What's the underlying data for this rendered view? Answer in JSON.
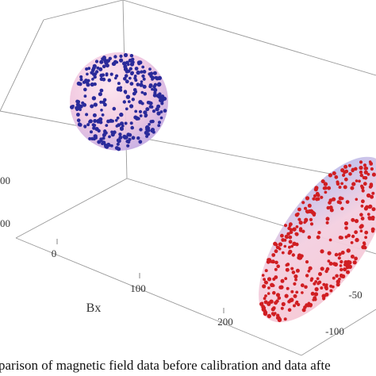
{
  "caption": "parison of magnetic field data before calibration and data afte",
  "chart_data": {
    "type": "scatter",
    "dimensions": 3,
    "xlabel": "Bx",
    "x_ticks": [
      "0",
      "100",
      "200"
    ],
    "y_ticks": [
      "-50",
      "-100"
    ],
    "z_ticks_partial": [
      "00",
      "00"
    ],
    "series": [
      {
        "shape": "sphere",
        "marker_color": "#2a2a9a",
        "surface_colors": [
          "#f7c9de",
          "#b9a6e6"
        ],
        "center": [
          -20,
          80,
          60
        ],
        "radius": 55
      },
      {
        "shape": "ellipsoid",
        "marker_color": "#d01e22",
        "surface_colors": [
          "#f5c3cf",
          "#aebcf0"
        ],
        "center": [
          230,
          -40,
          -60
        ],
        "radii": [
          70,
          45,
          150
        ]
      }
    ],
    "grid": false,
    "box": true
  }
}
